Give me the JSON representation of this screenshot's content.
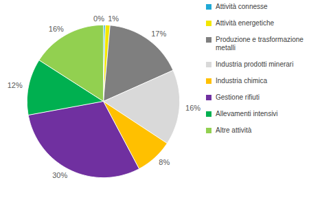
{
  "chart_data": {
    "type": "pie",
    "categories": [
      "Attività connesse",
      "Attività energetiche",
      "Produzione e trasformazione metalli",
      "Industria prodotti minerari",
      "Industria chimica",
      "Gestione rifiuti",
      "Allevamenti intensivi",
      "Altre attività"
    ],
    "values": [
      0.4,
      1,
      17,
      16,
      8,
      30,
      12,
      16
    ],
    "value_labels": [
      "0%",
      "1%",
      "17%",
      "16%",
      "8%",
      "30%",
      "12%",
      "16%"
    ],
    "colors": [
      "#1fa9d6",
      "#f2e600",
      "#7f7f7f",
      "#d9d9d9",
      "#ffc000",
      "#7030a0",
      "#00b050",
      "#92d050"
    ],
    "data_labels": true,
    "legend": "right"
  }
}
